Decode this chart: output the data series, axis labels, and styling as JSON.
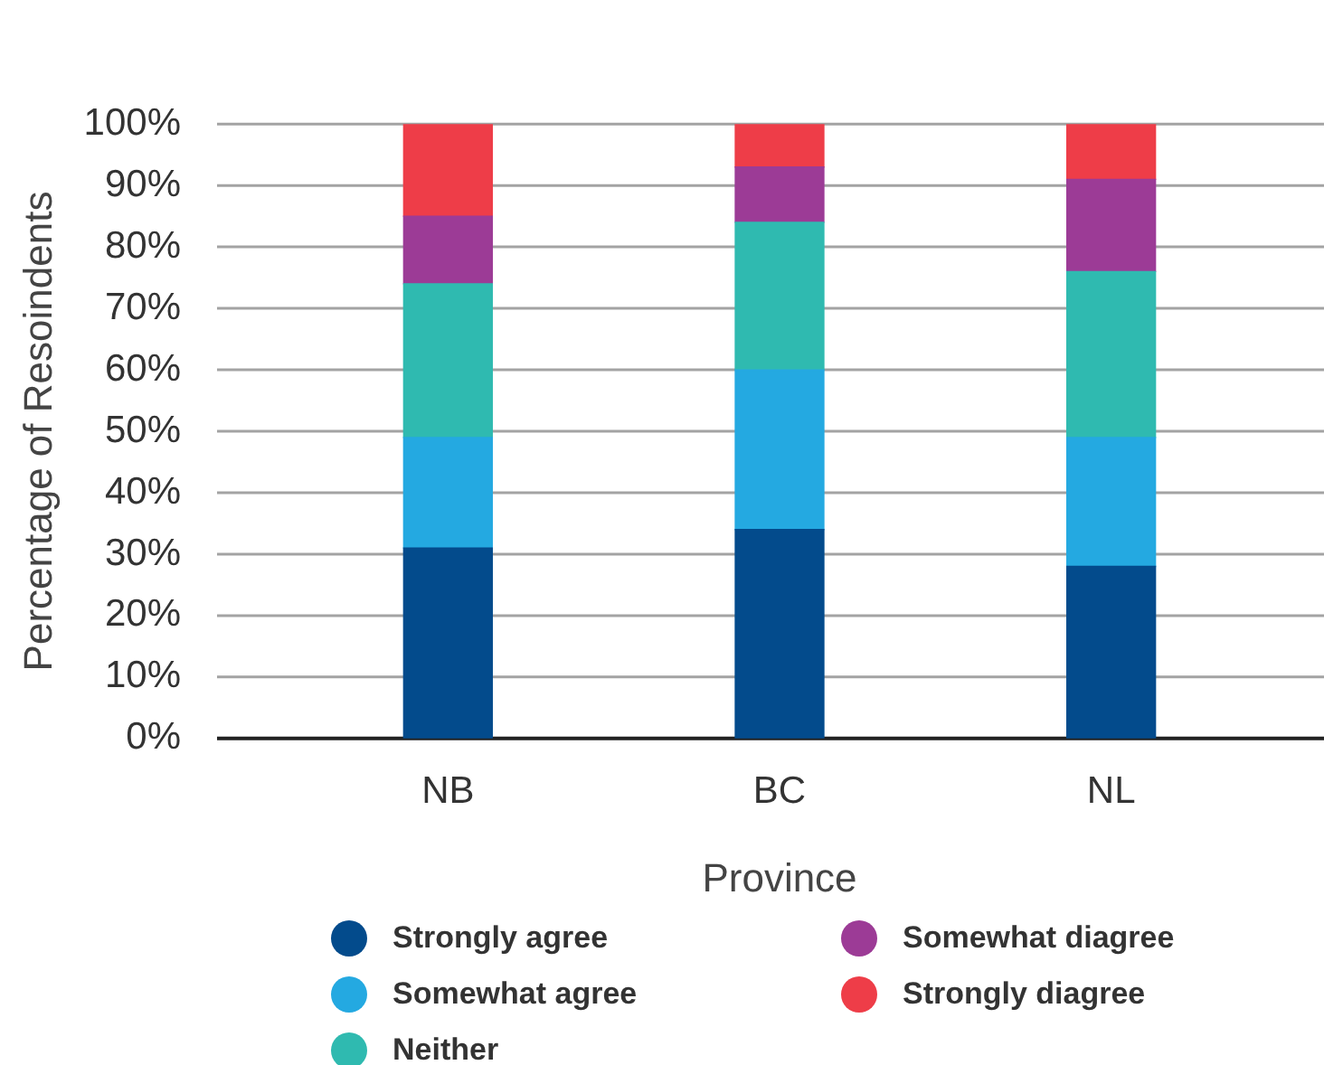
{
  "chart_data": {
    "type": "bar",
    "stacked": true,
    "xlabel": "Province",
    "ylabel": "Percentage of Resoindents",
    "categories": [
      "NB",
      "BC",
      "NL"
    ],
    "series": [
      {
        "name": "Strongly agree",
        "color": "#034b8c",
        "values": [
          31,
          34,
          28
        ]
      },
      {
        "name": "Somewhat agree",
        "color": "#24a9e1",
        "values": [
          18,
          26,
          21
        ]
      },
      {
        "name": "Neither",
        "color": "#2fbab0",
        "values": [
          25,
          24,
          27
        ]
      },
      {
        "name": "Somewhat diagree",
        "color": "#9c3b96",
        "values": [
          11,
          9,
          15
        ]
      },
      {
        "name": "Strongly diagree",
        "color": "#ee3d48",
        "values": [
          15,
          7,
          9
        ]
      }
    ],
    "ylim": [
      0,
      100
    ],
    "yticks": [
      {
        "value": 0,
        "label": "0%"
      },
      {
        "value": 10,
        "label": "10%"
      },
      {
        "value": 20,
        "label": "20%"
      },
      {
        "value": 30,
        "label": "30%"
      },
      {
        "value": 40,
        "label": "40%"
      },
      {
        "value": 50,
        "label": "50%"
      },
      {
        "value": 60,
        "label": "60%"
      },
      {
        "value": 70,
        "label": "70%"
      },
      {
        "value": 80,
        "label": "80%"
      },
      {
        "value": 90,
        "label": "90%"
      },
      {
        "value": 100,
        "label": "100%"
      }
    ],
    "grid": "y",
    "legend": "bottom"
  }
}
